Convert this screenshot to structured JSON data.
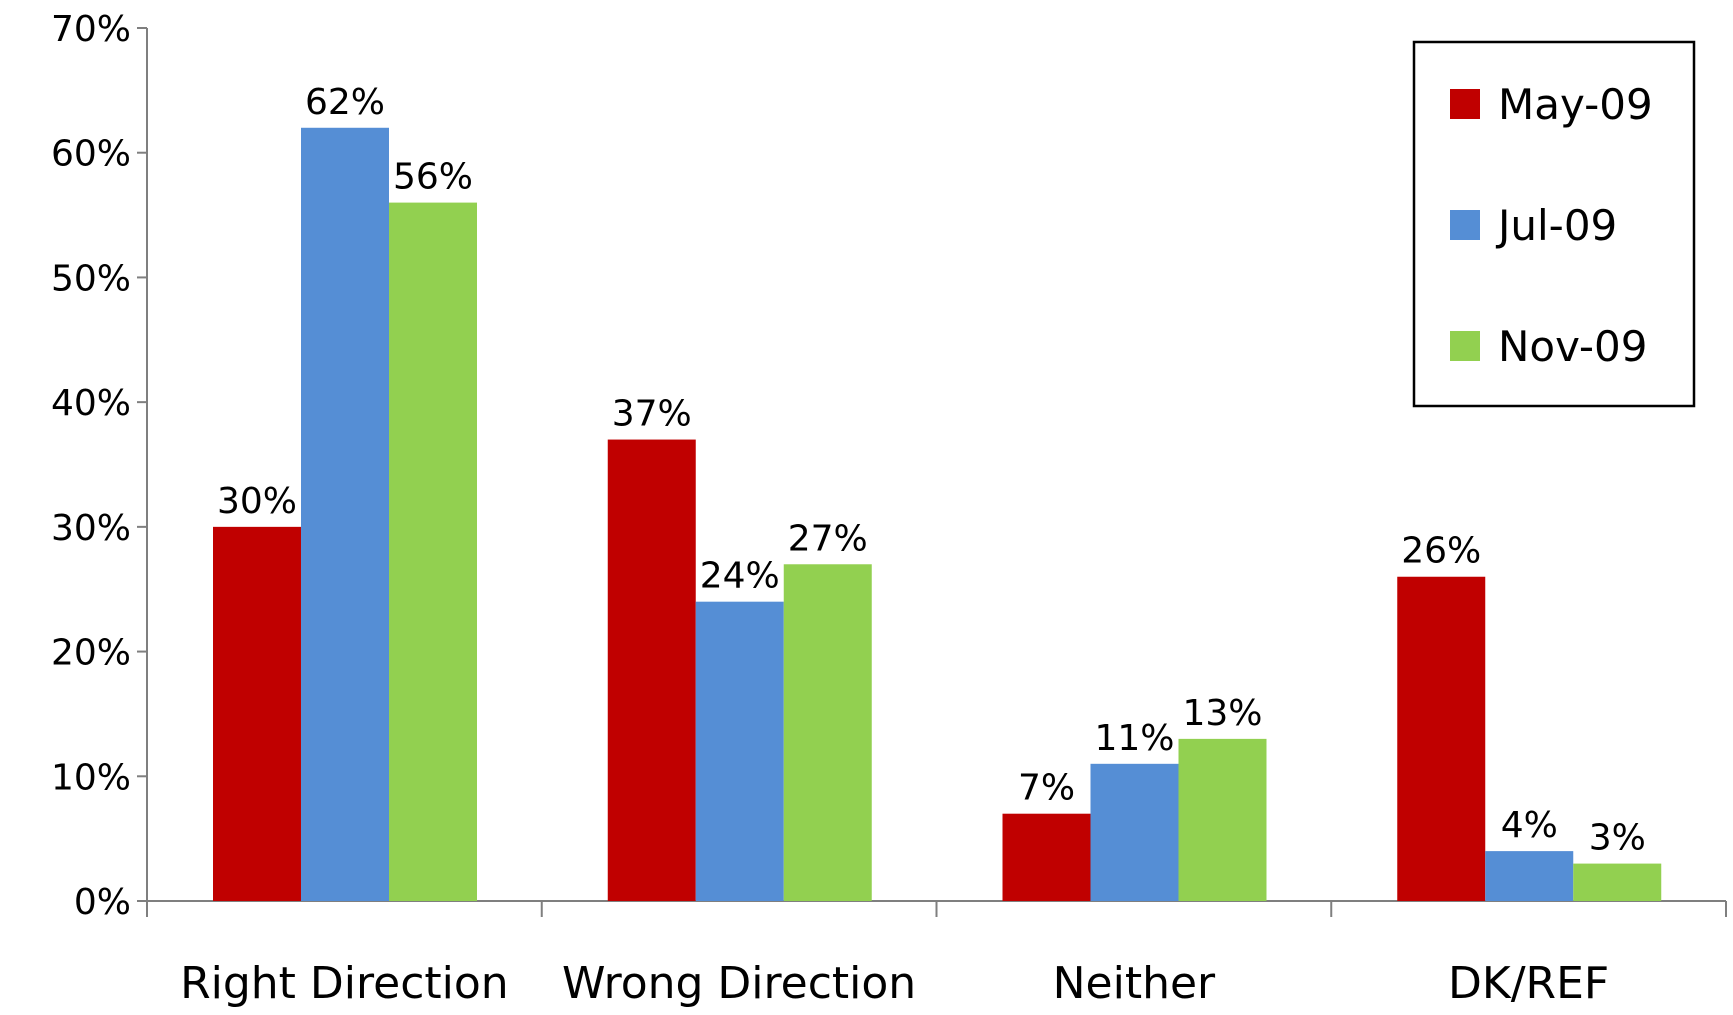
{
  "chart_data": {
    "type": "bar",
    "title": "",
    "xlabel": "",
    "ylabel": "",
    "categories": [
      "Right Direction",
      "Wrong Direction",
      "Neither",
      "DK/REF"
    ],
    "series": [
      {
        "name": "May-09",
        "color": "#C00000",
        "values": [
          30,
          37,
          7,
          26
        ],
        "labels": [
          "30%",
          "37%",
          "7%",
          "26%"
        ]
      },
      {
        "name": "Jul-09",
        "color": "#558ED5",
        "values": [
          62,
          24,
          11,
          4
        ],
        "labels": [
          "62%",
          "24%",
          "11%",
          "4%"
        ]
      },
      {
        "name": "Nov-09",
        "color": "#92D050",
        "values": [
          56,
          27,
          13,
          3
        ],
        "labels": [
          "56%",
          "27%",
          "13%",
          "3%"
        ]
      }
    ],
    "ylim": [
      0,
      70
    ],
    "yticks": [
      0,
      10,
      20,
      30,
      40,
      50,
      60,
      70
    ],
    "ytick_labels": [
      "0%",
      "10%",
      "20%",
      "30%",
      "40%",
      "50%",
      "60%",
      "70%"
    ],
    "grid": false,
    "legend_position": "top-right"
  }
}
